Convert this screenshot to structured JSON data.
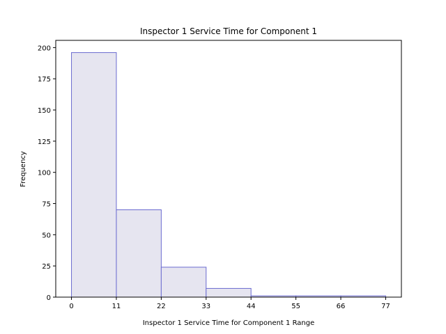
{
  "chart_data": {
    "type": "bar",
    "title": "Inspector 1 Service Time for Component 1",
    "xlabel": "Inspector 1 Service Time for Component 1 Range",
    "ylabel": "Frequency",
    "bin_edges": [
      0,
      11,
      22,
      33,
      44,
      55,
      66,
      77
    ],
    "values": [
      196,
      70,
      24,
      7,
      1,
      1,
      1
    ],
    "x_ticks": [
      0,
      11,
      22,
      33,
      44,
      55,
      66,
      77
    ],
    "y_ticks": [
      0,
      25,
      50,
      75,
      100,
      125,
      150,
      175,
      200
    ],
    "xlim": [
      -3.85,
      80.85
    ],
    "ylim": [
      0,
      205.8
    ],
    "grid": false,
    "colors": {
      "bar_fill": "#e6e5f0",
      "bar_edge": "#6b6bd0",
      "axis": "#000000"
    }
  }
}
